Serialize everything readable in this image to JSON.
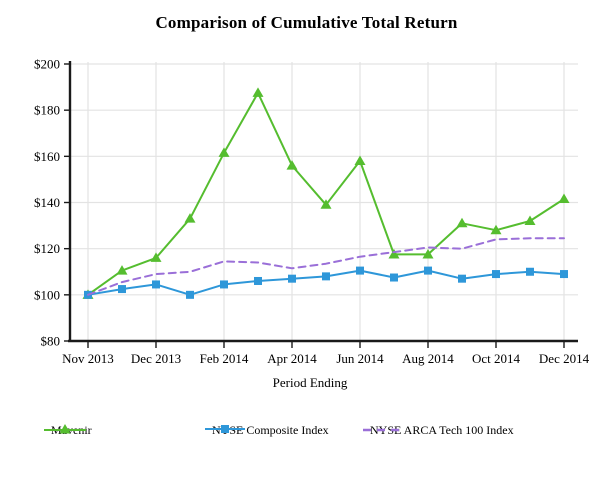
{
  "chart_data": {
    "type": "line",
    "title": "Comparison of Cumulative Total Return",
    "xlabel": "Period Ending",
    "ylabel": "",
    "ylim": [
      80,
      200
    ],
    "grid": true,
    "legend_position": "bottom",
    "n_points": 15,
    "x_tick_labels": [
      "Nov 2013",
      "Dec 2013",
      "Feb 2014",
      "Apr 2014",
      "Jun 2014",
      "Aug 2014",
      "Oct 2014",
      "Dec 2014"
    ],
    "x_tick_indices": [
      0,
      2,
      4,
      6,
      8,
      10,
      12,
      14
    ],
    "y_tick_labels": [
      "$200",
      "$180",
      "$160",
      "$140",
      "$120",
      "$100",
      "$80"
    ],
    "y_tick_values": [
      200,
      180,
      160,
      140,
      120,
      100,
      80
    ],
    "series": [
      {
        "name": "Mavenir",
        "color": "#55BD2F",
        "marker": "triangle",
        "line_style": "solid",
        "values": [
          100,
          110.5,
          116,
          133,
          161.5,
          187.5,
          156,
          139,
          158,
          117.5,
          117.5,
          131,
          128,
          132,
          141.5
        ]
      },
      {
        "name": "NYSE Composite Index",
        "color": "#2E97D9",
        "marker": "square",
        "line_style": "solid",
        "values": [
          100,
          102.5,
          104.5,
          100,
          104.5,
          106,
          107,
          108,
          110.5,
          107.5,
          110.5,
          107,
          109,
          110,
          109
        ]
      },
      {
        "name": "NYSE ARCA Tech 100 Index",
        "color": "#9A6FD8",
        "marker": "none",
        "line_style": "dashed",
        "values": [
          100,
          105.5,
          109,
          110,
          114.5,
          114,
          111.5,
          113.5,
          116.5,
          118.5,
          120.5,
          120,
          124,
          124.5,
          124.5
        ]
      }
    ],
    "colors": {
      "grid": "#E3E3E3",
      "axis": "#1A1A1A",
      "text": "#000000",
      "background": "#FFFFFF"
    }
  }
}
